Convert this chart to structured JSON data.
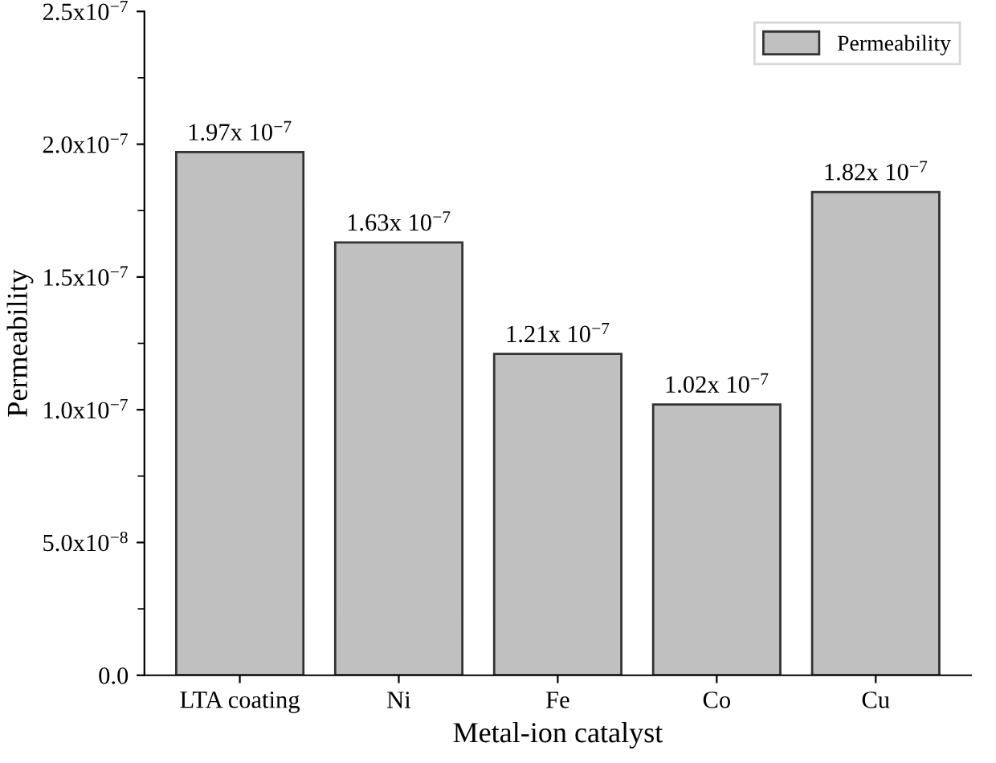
{
  "chart_data": {
    "type": "bar",
    "xlabel": "Metal-ion catalyst",
    "ylabel": "Permeability",
    "categories": [
      "LTA coating",
      "Ni",
      "Fe",
      "Co",
      "Cu"
    ],
    "series": [
      {
        "name": "Permeability",
        "color": "#c0c0c0",
        "values": [
          1.97e-07,
          1.63e-07,
          1.21e-07,
          1.02e-07,
          1.82e-07
        ],
        "value_labels": [
          "1.97x 10$^{−7}$",
          "1.63x 10$^{−7}$",
          "1.21x 10$^{−7}$",
          "1.02x 10$^{−7}$",
          "1.82x 10$^{−7}$"
        ]
      }
    ],
    "ylim": [
      0,
      2.5e-07
    ],
    "yticks": [
      {
        "value": 0,
        "label": "0.0"
      },
      {
        "value": 5e-08,
        "label": "5.0x10$^{−8}$"
      },
      {
        "value": 1e-07,
        "label": "1.0x10$^{−7}$"
      },
      {
        "value": 1.5e-07,
        "label": "1.5x10$^{−7}$"
      },
      {
        "value": 2e-07,
        "label": "2.0x10$^{−7}$"
      },
      {
        "value": 2.5e-07,
        "label": "2.5x10$^{−7}$"
      }
    ],
    "grid": false,
    "legend": "top right"
  }
}
